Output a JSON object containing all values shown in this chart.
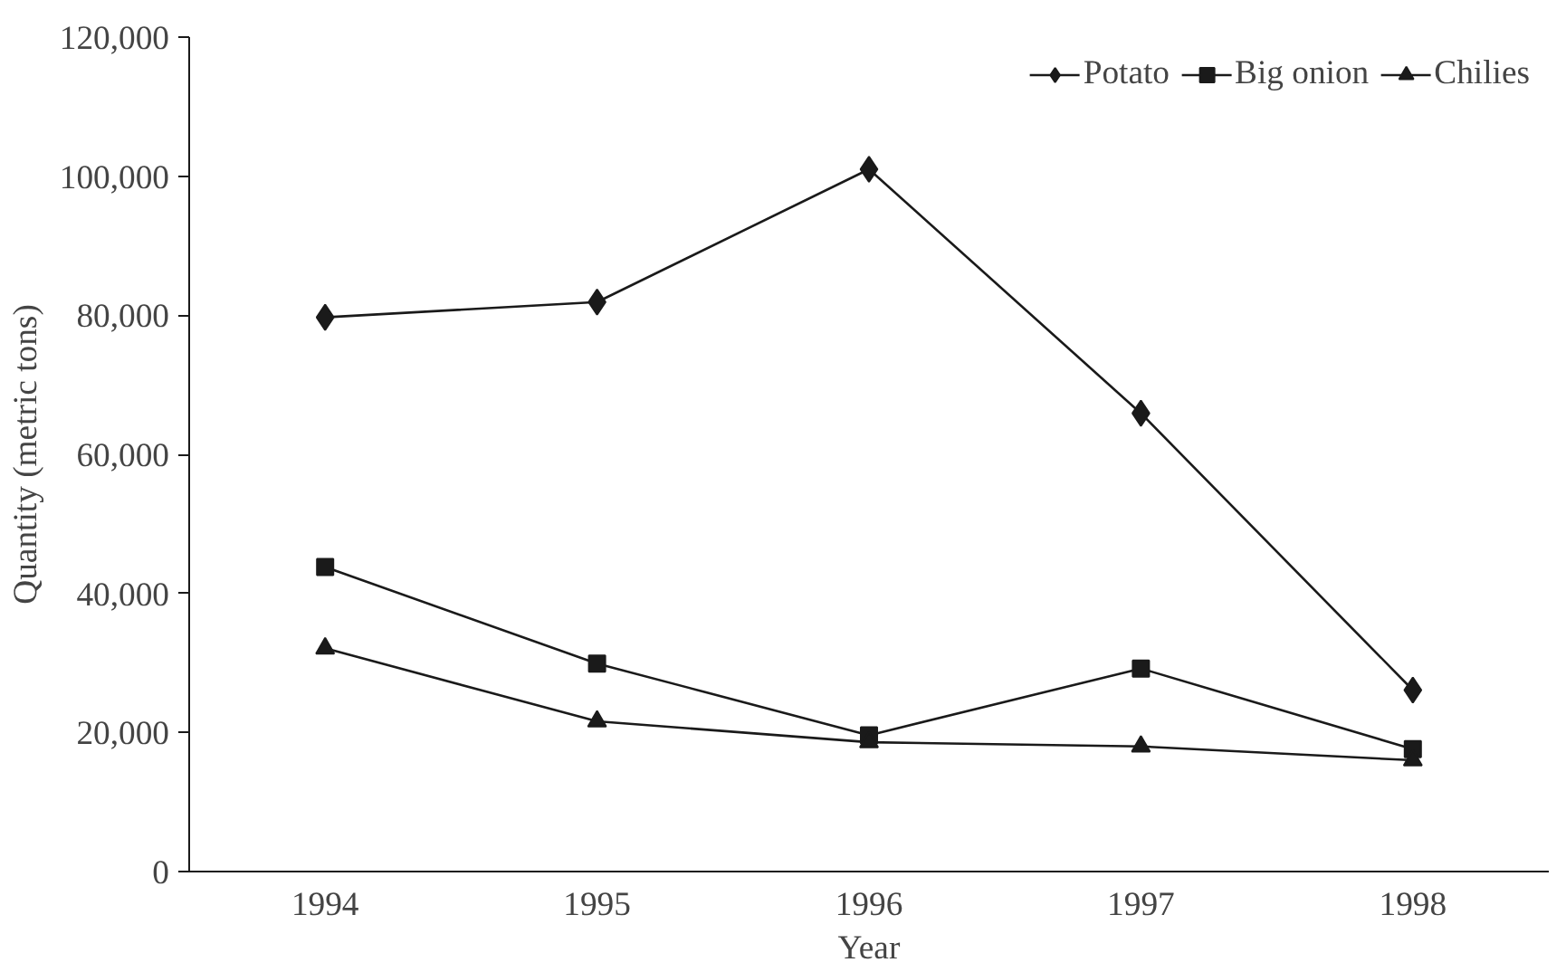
{
  "chart_data": {
    "type": "line",
    "xlabel": "Year",
    "ylabel": "Quantity (metric tons)",
    "categories": [
      "1994",
      "1995",
      "1996",
      "1997",
      "1998"
    ],
    "ylim": [
      0,
      120000
    ],
    "yticks": [
      {
        "value": 0,
        "label": "0"
      },
      {
        "value": 20000,
        "label": "20,000"
      },
      {
        "value": 40000,
        "label": "40,000"
      },
      {
        "value": 60000,
        "label": "60,000"
      },
      {
        "value": 80000,
        "label": "80,000"
      },
      {
        "value": 100000,
        "label": "100,000"
      },
      {
        "value": 120000,
        "label": "120,000"
      }
    ],
    "grid": false,
    "legend": "top right",
    "line_style": "solid",
    "series": [
      {
        "name": "Potato",
        "color": "#1a1a1a",
        "marker": "diamond",
        "values": [
          79700,
          81900,
          101000,
          65900,
          26100
        ]
      },
      {
        "name": "Big onion",
        "color": "#1a1a1a",
        "marker": "square",
        "values": [
          43800,
          29900,
          19600,
          29200,
          17600
        ]
      },
      {
        "name": "Chilies",
        "color": "#1a1a1a",
        "marker": "triangle",
        "values": [
          32100,
          21600,
          18600,
          18000,
          16000
        ]
      }
    ]
  }
}
